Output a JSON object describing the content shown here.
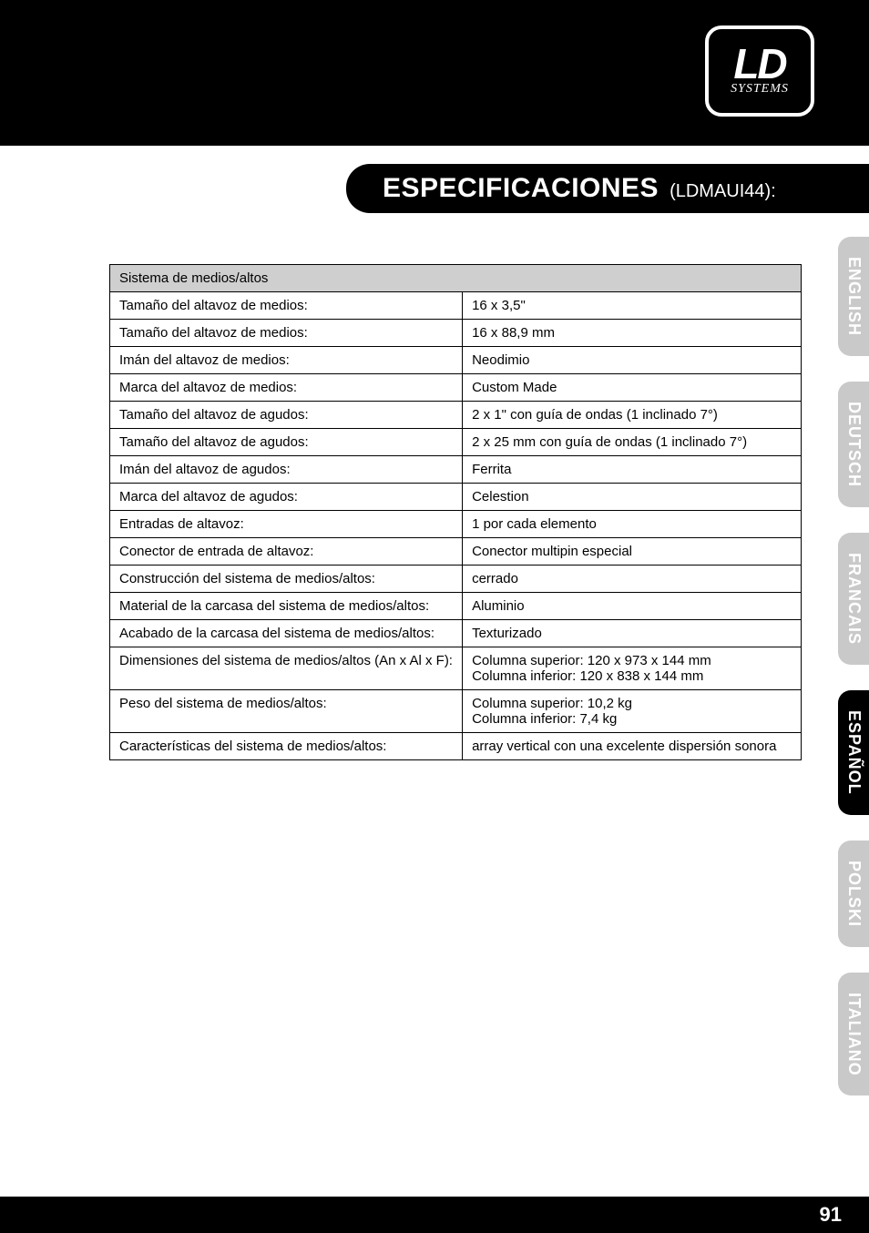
{
  "logo": {
    "main": "LD",
    "sub": "SYSTEMS"
  },
  "title": {
    "main": "ESPECIFICACIONES",
    "sub": "(LDMAUI44):"
  },
  "table": {
    "header": "Sistema de medios/altos",
    "rows": [
      {
        "label": "Tamaño del altavoz de medios:",
        "value": "16 x 3,5\""
      },
      {
        "label": "Tamaño del altavoz de medios:",
        "value": "16 x 88,9 mm"
      },
      {
        "label": "Imán del altavoz de medios:",
        "value": "Neodimio"
      },
      {
        "label": "Marca del altavoz de medios:",
        "value": "Custom Made"
      },
      {
        "label": "Tamaño del altavoz de agudos:",
        "value": "2 x 1\" con guía de ondas (1 inclinado 7°)"
      },
      {
        "label": "Tamaño del altavoz de agudos:",
        "value": "2 x 25 mm con guía de ondas (1 inclinado 7°)"
      },
      {
        "label": "Imán del altavoz de agudos:",
        "value": "Ferrita"
      },
      {
        "label": "Marca del altavoz de agudos:",
        "value": "Celestion"
      },
      {
        "label": "Entradas de altavoz:",
        "value": "1 por cada elemento"
      },
      {
        "label": "Conector de entrada de altavoz:",
        "value": "Conector multipin especial"
      },
      {
        "label": "Construcción del sistema de medios/altos:",
        "value": "cerrado"
      },
      {
        "label": "Material de la carcasa del sistema de medios/altos:",
        "value": "Aluminio"
      },
      {
        "label": "Acabado de la carcasa del sistema de medios/altos:",
        "value": "Texturizado"
      },
      {
        "label": "Dimensiones del sistema de medios/altos (An x Al x F):",
        "value": "Columna superior: 120 x 973 x 144 mm\nColumna inferior: 120 x 838 x 144 mm"
      },
      {
        "label": "Peso del sistema de medios/altos:",
        "value": "Columna superior: 10,2 kg\nColumna inferior: 7,4 kg"
      },
      {
        "label": "Características del sistema de medios/altos:",
        "value": "array vertical con una excelente dispersión sonora"
      }
    ]
  },
  "languages": [
    {
      "label": "ENGLISH",
      "active": false
    },
    {
      "label": "DEUTSCH",
      "active": false
    },
    {
      "label": "FRANCAIS",
      "active": false
    },
    {
      "label": "ESPAÑOL",
      "active": true
    },
    {
      "label": "POLSKI",
      "active": false
    },
    {
      "label": "ITALIANO",
      "active": false
    }
  ],
  "page_number": "91",
  "colors": {
    "black": "#000000",
    "white": "#ffffff",
    "header_bg": "#cfcfcf",
    "tab_inactive": "#c9c9c9"
  }
}
